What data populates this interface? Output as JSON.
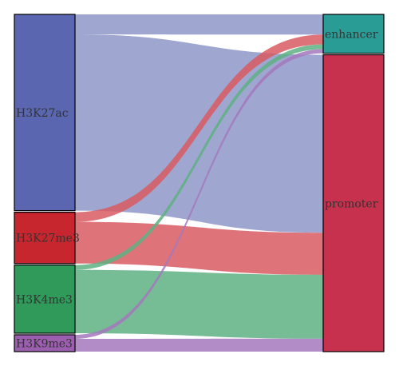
{
  "chart_data": {
    "type": "sankey",
    "nodes_left": [
      {
        "id": "H3K27ac",
        "label": "H3K27ac",
        "color": "#5a66b0"
      },
      {
        "id": "H3K27me3",
        "label": "H3K27me3",
        "color": "#c8262e"
      },
      {
        "id": "H3K4me3",
        "label": "H3K4me3",
        "color": "#2f9a5a"
      },
      {
        "id": "H3K9me3",
        "label": "H3K9me3",
        "color": "#9c5fb0"
      }
    ],
    "nodes_right": [
      {
        "id": "enhancer",
        "label": "enhancer",
        "color": "#2a9c96"
      },
      {
        "id": "promoter",
        "label": "promoter",
        "color": "#c8314d"
      }
    ],
    "links": [
      {
        "source": "H3K27ac",
        "target": "enhancer",
        "value": 25,
        "color": "#8e96c8"
      },
      {
        "source": "H3K27ac",
        "target": "promoter",
        "value": 220,
        "color": "#8e96c8"
      },
      {
        "source": "H3K27me3",
        "target": "enhancer",
        "value": 12,
        "color": "#d85a62"
      },
      {
        "source": "H3K27me3",
        "target": "promoter",
        "value": 52,
        "color": "#d85a62"
      },
      {
        "source": "H3K4me3",
        "target": "enhancer",
        "value": 6,
        "color": "#5eb082"
      },
      {
        "source": "H3K4me3",
        "target": "promoter",
        "value": 79,
        "color": "#5eb082"
      },
      {
        "source": "H3K9me3",
        "target": "enhancer",
        "value": 5,
        "color": "#a478bd"
      },
      {
        "source": "H3K9me3",
        "target": "promoter",
        "value": 16,
        "color": "#a478bd"
      }
    ]
  }
}
